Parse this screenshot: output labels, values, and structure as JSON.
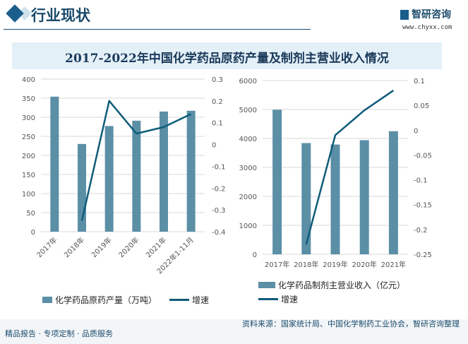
{
  "header": {
    "title": "行业现状",
    "logo": "智研咨询",
    "url": "www.chyxx.com"
  },
  "title": "2017-2022年中国化学药品原药产量及制剂主营业收入情况",
  "footer": {
    "left": "精品报告 · 专项定制 · 品质服务",
    "source": "资料来源：国家统计局、中国化学制药工业协会，智研咨询整理"
  },
  "colors": {
    "bar": "#5b8fa6",
    "line": "#0f5c7a"
  },
  "chart_data": [
    {
      "type": "bar+line",
      "categories": [
        "2017年",
        "2018年",
        "2019年",
        "2020年",
        "2021年",
        "2022年1-11月"
      ],
      "series": [
        {
          "name": "化学药品原药产量（万吨）",
          "type": "bar",
          "axis": "left",
          "values": [
            354,
            230,
            277,
            291,
            315,
            317
          ]
        },
        {
          "name": "增速",
          "type": "line",
          "axis": "right",
          "values": [
            null,
            -0.35,
            0.2,
            0.05,
            0.08,
            0.14
          ]
        }
      ],
      "ylim_left": [
        0,
        400
      ],
      "yticks_left": [
        "0",
        "50",
        "100",
        "150",
        "200",
        "250",
        "300",
        "350",
        "400"
      ],
      "ylim_right": [
        -0.4,
        0.3
      ],
      "yticks_right": [
        "-0.4",
        "-0.3",
        "-0.2",
        "-0.1",
        "0",
        "0.1",
        "0.2",
        "0.3"
      ],
      "grid": true,
      "legend": "bottom"
    },
    {
      "type": "bar+line",
      "categories": [
        "2017年",
        "2018年",
        "2019年",
        "2020年",
        "2021年"
      ],
      "series": [
        {
          "name": "化学药品制剂主营业收入（亿元）",
          "type": "bar",
          "axis": "left",
          "values": [
            4990,
            3840,
            3790,
            3940,
            4250
          ]
        },
        {
          "name": "增速",
          "type": "line",
          "axis": "right",
          "values": [
            null,
            -0.23,
            -0.01,
            0.04,
            0.08
          ]
        }
      ],
      "ylim_left": [
        0,
        6000
      ],
      "yticks_left": [
        "0",
        "1000",
        "2000",
        "3000",
        "4000",
        "5000",
        "6000"
      ],
      "ylim_right": [
        -0.25,
        0.1
      ],
      "yticks_right": [
        "-0.25",
        "-0.2",
        "-0.15",
        "-0.1",
        "-0.05",
        "0",
        "0.05",
        "0.1"
      ],
      "grid": true,
      "legend": "bottom"
    }
  ]
}
